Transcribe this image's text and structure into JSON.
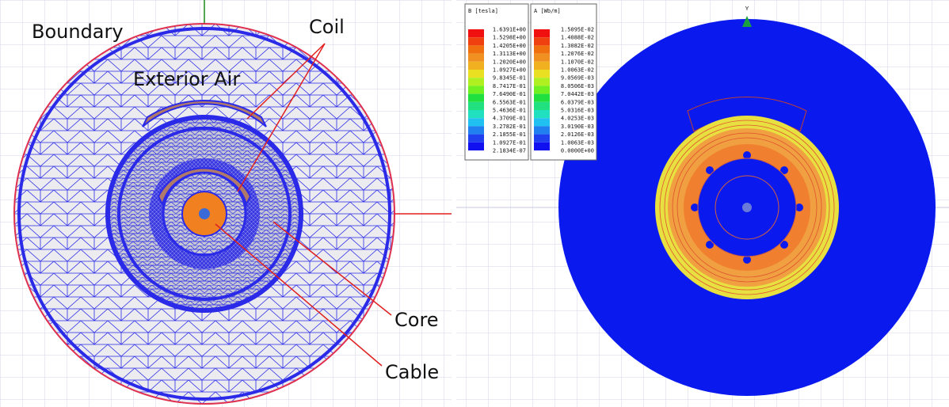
{
  "mesh_view": {
    "labels": {
      "boundary": "Boundary",
      "exterior_air": "Exterior Air",
      "coil": "Coil",
      "core": "Core",
      "cable": "Cable"
    }
  },
  "field_view": {
    "axis_label": "Y",
    "legends": [
      {
        "title": "B [tesla]",
        "values": [
          "1.6391E+00",
          "1.5298E+00",
          "1.4205E+00",
          "1.3113E+00",
          "1.2020E+00",
          "1.0927E+00",
          "9.8345E-01",
          "8.7417E-01",
          "7.6490E-01",
          "6.5563E-01",
          "5.4636E-01",
          "4.3709E-01",
          "3.2782E-01",
          "2.1855E-01",
          "1.0927E-01",
          "2.1834E-07"
        ]
      },
      {
        "title": "A [Wb/m]",
        "values": [
          "1.5095E-02",
          "1.4088E-02",
          "1.3082E-02",
          "1.2076E-02",
          "1.1070E-02",
          "1.0063E-02",
          "9.0569E-03",
          "8.0506E-03",
          "7.0442E-03",
          "6.0379E-03",
          "5.0316E-03",
          "4.0253E-03",
          "3.0190E-03",
          "2.0126E-03",
          "1.0063E-03",
          "0.0000E+00"
        ]
      }
    ]
  }
}
